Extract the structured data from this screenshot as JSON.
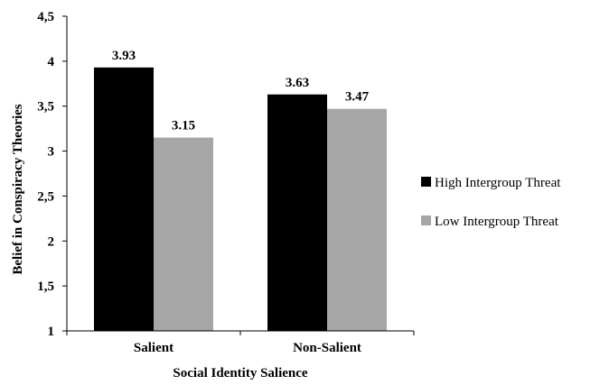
{
  "chart_data": {
    "type": "bar",
    "categories": [
      "Salient",
      "Non-Salient"
    ],
    "series": [
      {
        "name": "High Intergroup Threat",
        "values": [
          3.93,
          3.63
        ],
        "labels": [
          "3.93",
          "3.63"
        ],
        "color": "#000000"
      },
      {
        "name": "Low Intergroup Threat",
        "values": [
          3.15,
          3.47
        ],
        "labels": [
          "3.15",
          "3.47"
        ],
        "color": "#a6a6a6"
      }
    ],
    "xlabel": "Social Identity Salience",
    "ylabel": "Belief in Conspiracy Theories",
    "ylim": [
      1,
      4.5
    ],
    "yticks": [
      1,
      1.5,
      2,
      2.5,
      3,
      3.5,
      4,
      4.5
    ],
    "ytick_labels": [
      "1",
      "1,5",
      "2",
      "2,5",
      "3",
      "3,5",
      "4",
      "4,5"
    ],
    "grid": false,
    "legend": "right"
  }
}
